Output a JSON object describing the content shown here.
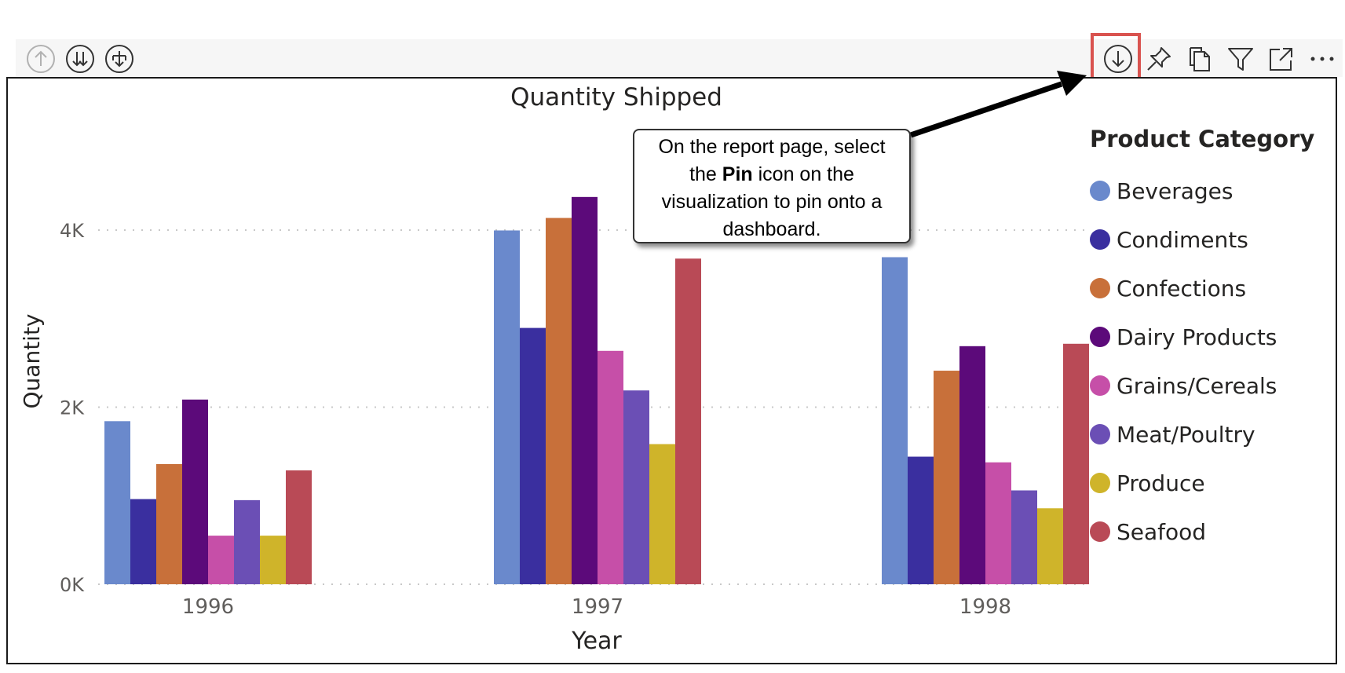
{
  "toolbar": {
    "left_buttons": [
      {
        "name": "drill-up-icon",
        "label": "Drill up"
      },
      {
        "name": "expand-all-down-icon",
        "label": "Go to the next level in the hierarchy"
      },
      {
        "name": "expand-down-icon",
        "label": "Expand all down one level in the hierarchy"
      }
    ],
    "right_buttons": [
      {
        "name": "drill-mode-icon"
      },
      {
        "name": "pin-icon"
      },
      {
        "name": "copy-icon"
      },
      {
        "name": "filter-icon"
      },
      {
        "name": "focus-mode-icon"
      },
      {
        "name": "more-options-icon"
      }
    ]
  },
  "callout": {
    "line1": "On the report page, select",
    "line2_pre": "the ",
    "line2_bold": "Pin",
    "line2_post": " icon on the",
    "line3": "visualization to pin onto a",
    "line4": "dashboard."
  },
  "legend": {
    "title": "Product Category"
  },
  "colors": {
    "highlight": "#d9534f",
    "arrow": "#000000"
  },
  "chart_data": {
    "type": "bar",
    "title": "Quantity Shipped",
    "xlabel": "Year",
    "ylabel": "Quantity",
    "categories": [
      "1996",
      "1997",
      "1998"
    ],
    "ylim": [
      0,
      4400
    ],
    "yticks": [
      0,
      2000,
      4000
    ],
    "ytick_labels": [
      "0K",
      "2K",
      "4K"
    ],
    "grid": true,
    "legend_position": "right",
    "series": [
      {
        "name": "Beverages",
        "color": "#6a89cc",
        "values": [
          1842,
          3996,
          3694
        ]
      },
      {
        "name": "Condiments",
        "color": "#3a2f9f",
        "values": [
          962,
          2895,
          1441
        ]
      },
      {
        "name": "Confections",
        "color": "#c8703a",
        "values": [
          1357,
          4137,
          2412
        ]
      },
      {
        "name": "Dairy Products",
        "color": "#5c0a7a",
        "values": [
          2086,
          4374,
          2689
        ]
      },
      {
        "name": "Grains/Cereals",
        "color": "#c64fa8",
        "values": [
          549,
          2636,
          1377
        ]
      },
      {
        "name": "Meat/Poultry",
        "color": "#6b4fb5",
        "values": [
          950,
          2189,
          1060
        ]
      },
      {
        "name": "Produce",
        "color": "#cfb42a",
        "values": [
          549,
          1583,
          858
        ]
      },
      {
        "name": "Seafood",
        "color": "#b94a56",
        "values": [
          1286,
          3678,
          2716
        ]
      }
    ]
  }
}
